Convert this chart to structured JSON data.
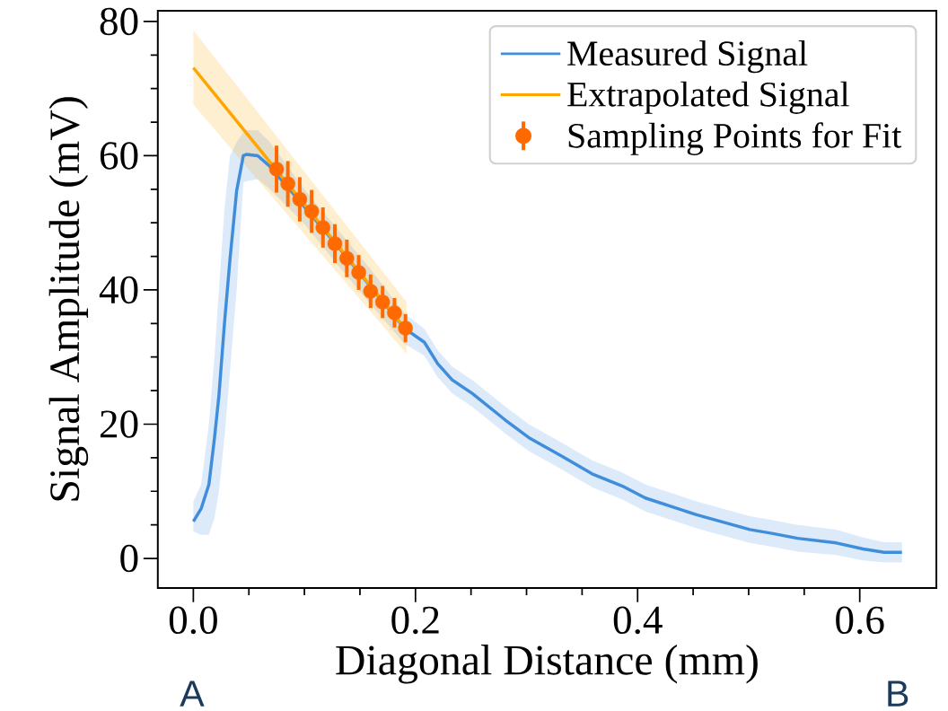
{
  "chart_data": {
    "type": "line",
    "xlabel": "Diagonal Distance (mm)",
    "ylabel": "Signal Amplitude (mV)",
    "xlim": [
      -0.032,
      0.669
    ],
    "ylim": [
      -4.4,
      81.6
    ],
    "xticks": [
      {
        "value": 0,
        "label": "0.0"
      },
      0.2,
      0.4,
      0.6
    ],
    "yticks": [
      0,
      20,
      40,
      60,
      80
    ],
    "legend": "top right",
    "annotations": [
      "A",
      "B"
    ],
    "series": [
      {
        "name": "Measured Signal",
        "color": "#3f8ddb",
        "line_style": "solid",
        "x": [
          0,
          0.007,
          0.014,
          0.019,
          0.023,
          0.028,
          0.033,
          0.039,
          0.045,
          0.048,
          0.058,
          0.069,
          0.1,
          0.13,
          0.16,
          0.19,
          0.208,
          0.22,
          0.233,
          0.251,
          0.281,
          0.302,
          0.329,
          0.359,
          0.386,
          0.407,
          0.453,
          0.501,
          0.522,
          0.544,
          0.579,
          0.603,
          0.622,
          0.638
        ],
        "values": [
          5.5,
          7.4,
          11,
          17.9,
          24.2,
          35,
          44.6,
          54.8,
          60,
          60.2,
          60,
          58.4,
          52.4,
          46.5,
          40.4,
          34.3,
          32.2,
          29,
          26.6,
          24.6,
          20.6,
          18,
          15.5,
          12.6,
          10.8,
          9,
          6.5,
          4.3,
          3.7,
          3,
          2.3,
          1.4,
          0.9,
          0.9
        ],
        "lower": [
          4,
          3.5,
          3.5,
          6,
          10,
          18,
          28,
          40,
          56,
          56.2,
          56.5,
          55,
          49.8,
          43.7,
          37.8,
          32,
          30.2,
          27,
          24.6,
          22.6,
          18.6,
          16,
          13.5,
          10.6,
          8.8,
          7,
          4.5,
          2.3,
          1.7,
          1,
          0.5,
          -0.3,
          -0.6,
          -0.6
        ],
        "upper": [
          8.5,
          11,
          20,
          30,
          40,
          52,
          60,
          62,
          63.5,
          63.8,
          63.8,
          62,
          55,
          49,
          43,
          36.5,
          34.2,
          31,
          28.6,
          26.6,
          22.6,
          20,
          17.5,
          14.6,
          12.8,
          11,
          8.5,
          6.3,
          5.7,
          5,
          4.3,
          3.1,
          2.4,
          2.4
        ]
      },
      {
        "name": "Extrapolated Signal",
        "color": "#ffa500",
        "line_style": "solid",
        "x": [
          0,
          0.192
        ],
        "values": [
          73.1,
          34.0
        ],
        "lower": [
          67.6,
          30.5
        ],
        "upper": [
          78.7,
          38.2
        ]
      },
      {
        "name": "Sampling Points for Fit",
        "type": "scatter",
        "color": "#ff6a00",
        "marker": "circle",
        "x": [
          0.0749,
          0.0851,
          0.0958,
          0.1065,
          0.1167,
          0.1274,
          0.1382,
          0.1489,
          0.1596,
          0.1704,
          0.1811,
          0.191
        ],
        "values": [
          58.0,
          55.8,
          53.5,
          51.7,
          49.3,
          46.9,
          44.7,
          42.6,
          39.8,
          38.2,
          36.6,
          34.3
        ],
        "errors": [
          3.5,
          3.4,
          3.3,
          3.2,
          3.0,
          2.9,
          2.8,
          2.6,
          2.5,
          2.4,
          2.2,
          2.1
        ]
      }
    ]
  }
}
